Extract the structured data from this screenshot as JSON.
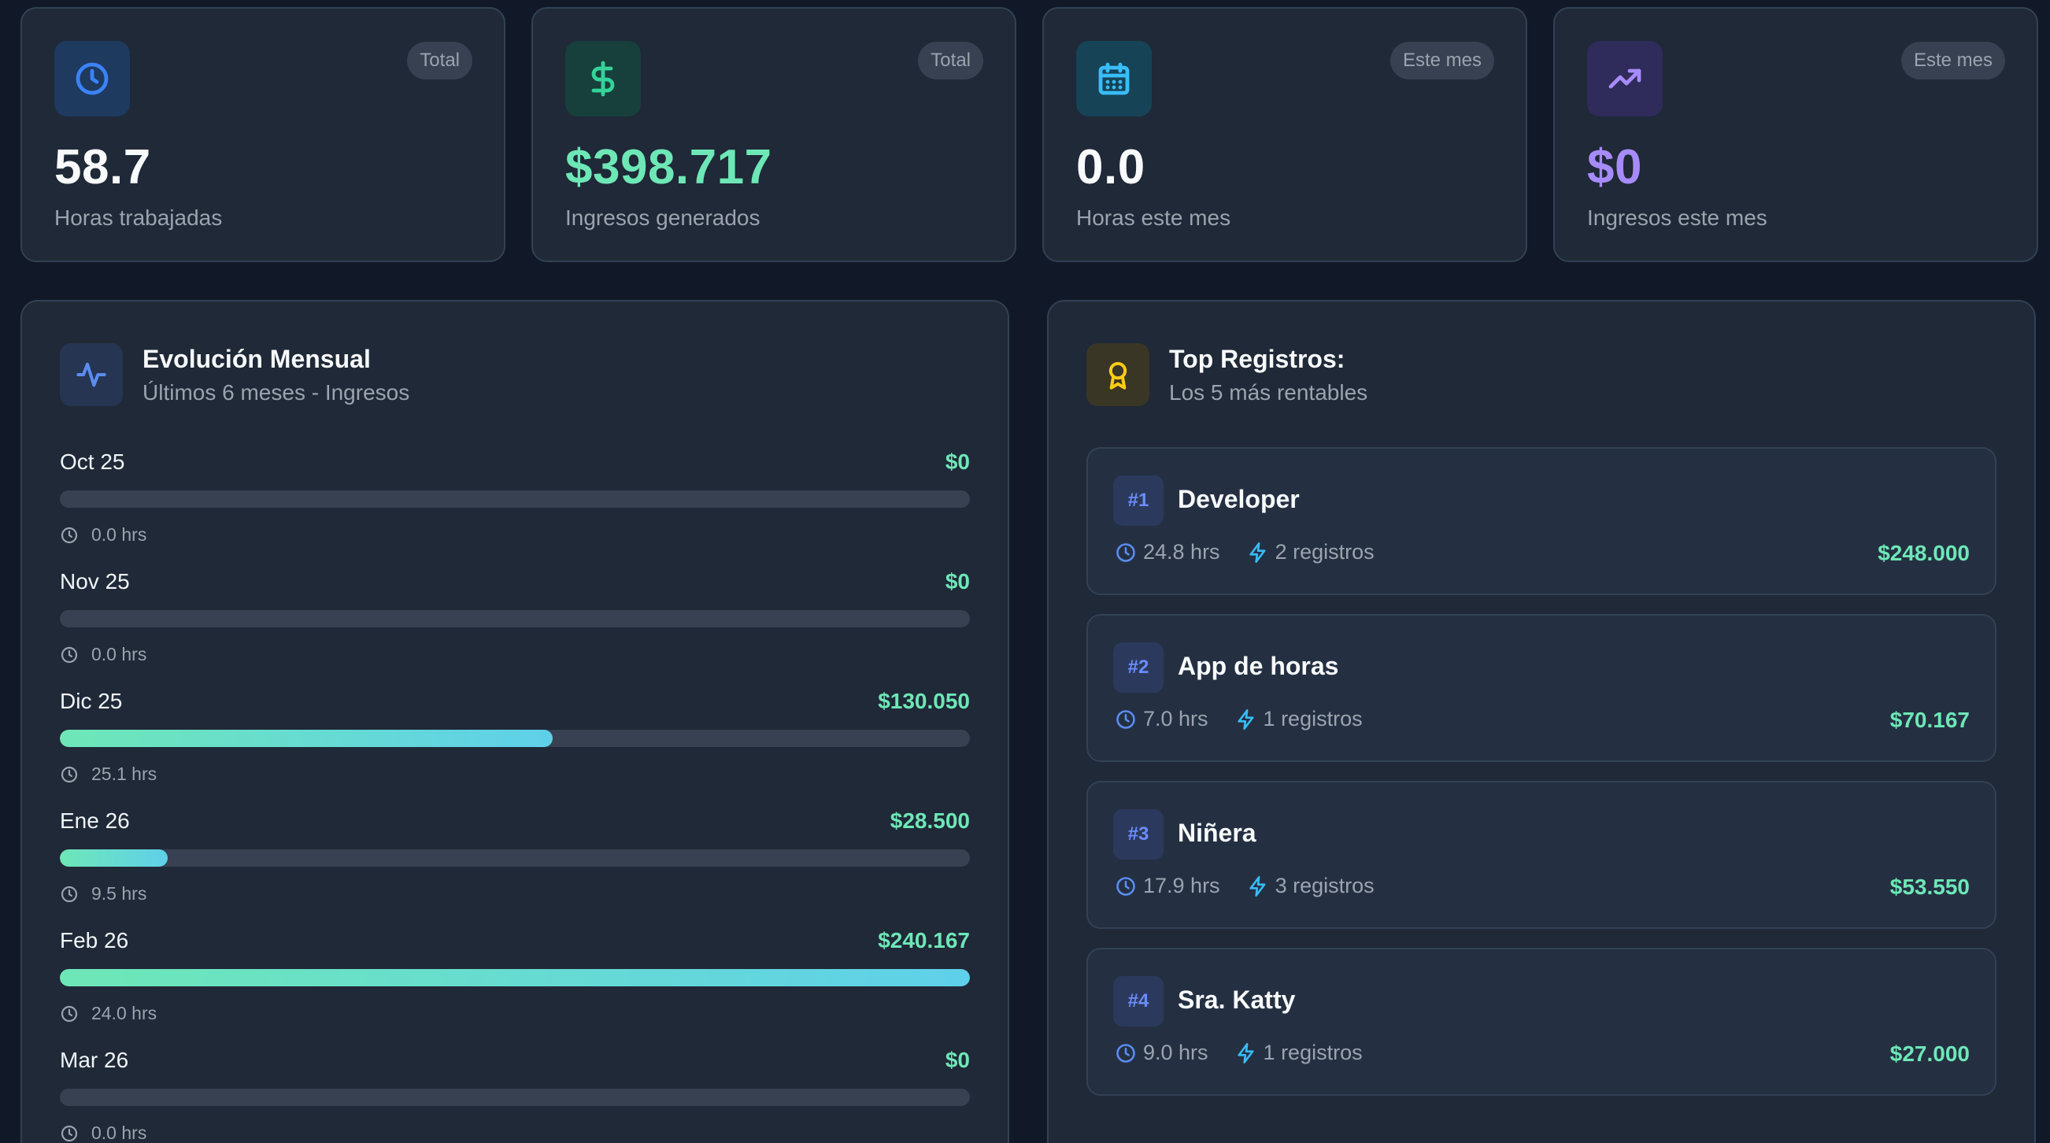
{
  "stats": [
    {
      "icon": "clock-icon",
      "badge": "Total",
      "value": "58.7",
      "label": "Horas trabajadas",
      "color": "#f8fafc",
      "accent": "#3b82f6",
      "icon_bg": "#1e3a5f"
    },
    {
      "icon": "dollar-icon",
      "badge": "Total",
      "value": "$398.717",
      "label": "Ingresos generados",
      "color": "#6ee7b7",
      "accent": "#34d399",
      "icon_bg": "#173f3c"
    },
    {
      "icon": "calendar-icon",
      "badge": "Este mes",
      "value": "0.0",
      "label": "Horas este mes",
      "color": "#f8fafc",
      "accent": "#38bdf8",
      "icon_bg": "#164356"
    },
    {
      "icon": "trending-up-icon",
      "badge": "Este mes",
      "value": "$0",
      "label": "Ingresos este mes",
      "color": "#a78bfa",
      "accent": "#a78bfa",
      "icon_bg": "#2f2b5a"
    }
  ],
  "monthly": {
    "icon": "activity-icon",
    "title": "Evolución Mensual",
    "subtitle": "Últimos 6 meses - Ingresos",
    "max_value": 240167,
    "rows": [
      {
        "month": "Oct 25",
        "value": "$0",
        "amount": 0,
        "hours": "0.0 hrs"
      },
      {
        "month": "Nov 25",
        "value": "$0",
        "amount": 0,
        "hours": "0.0 hrs"
      },
      {
        "month": "Dic 25",
        "value": "$130.050",
        "amount": 130050,
        "hours": "25.1 hrs"
      },
      {
        "month": "Ene 26",
        "value": "$28.500",
        "amount": 28500,
        "hours": "9.5 hrs"
      },
      {
        "month": "Feb 26",
        "value": "$240.167",
        "amount": 240167,
        "hours": "24.0 hrs"
      },
      {
        "month": "Mar 26",
        "value": "$0",
        "amount": 0,
        "hours": "0.0 hrs"
      }
    ]
  },
  "top": {
    "icon": "award-icon",
    "title": "Top Registros:",
    "subtitle": "Los 5 más rentables",
    "records": [
      {
        "rank": "#1",
        "name": "Developer",
        "hours": "24.8 hrs",
        "entries": "2 registros",
        "amount": "$248.000"
      },
      {
        "rank": "#2",
        "name": "App de horas",
        "hours": "7.0 hrs",
        "entries": "1 registros",
        "amount": "$70.167"
      },
      {
        "rank": "#3",
        "name": "Niñera",
        "hours": "17.9 hrs",
        "entries": "3 registros",
        "amount": "$53.550"
      },
      {
        "rank": "#4",
        "name": "Sra. Katty",
        "hours": "9.0 hrs",
        "entries": "1 registros",
        "amount": "$27.000"
      }
    ]
  }
}
